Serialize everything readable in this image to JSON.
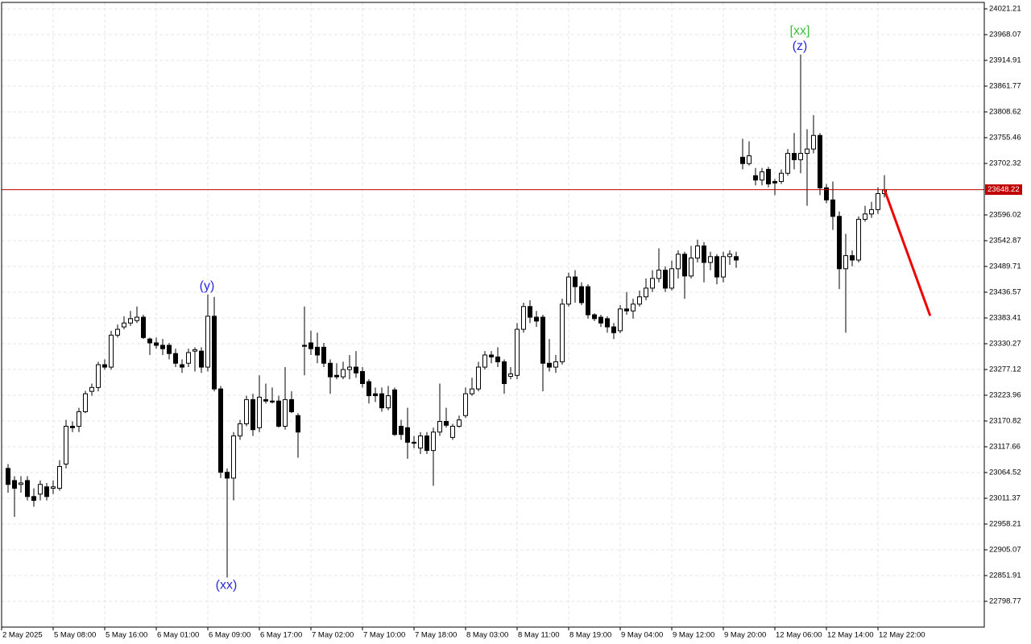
{
  "chart_data": {
    "type": "candlestick",
    "xlim": [
      -1,
      151.5
    ],
    "ylim": [
      22745.6,
      24034.5
    ],
    "grid": true,
    "up_color": "#ffffff",
    "down_color": "#000000",
    "xticks": [
      {
        "value": -1,
        "label": "2 May 2025"
      },
      {
        "value": 7,
        "label": "5 May 08:00"
      },
      {
        "value": 15,
        "label": "5 May 16:00"
      },
      {
        "value": 23,
        "label": "6 May 01:00"
      },
      {
        "value": 31,
        "label": "6 May 09:00"
      },
      {
        "value": 39,
        "label": "6 May 17:00"
      },
      {
        "value": 47,
        "label": "7 May 02:00"
      },
      {
        "value": 55,
        "label": "7 May 10:00"
      },
      {
        "value": 63,
        "label": "7 May 18:00"
      },
      {
        "value": 71,
        "label": "8 May 03:00"
      },
      {
        "value": 79,
        "label": "8 May 11:00"
      },
      {
        "value": 87,
        "label": "8 May 19:00"
      },
      {
        "value": 95,
        "label": "9 May 04:00"
      },
      {
        "value": 103,
        "label": "9 May 12:00"
      },
      {
        "value": 111,
        "label": "9 May 20:00"
      },
      {
        "value": 119,
        "label": "12 May 06:00"
      },
      {
        "value": 127,
        "label": "12 May 14:00"
      },
      {
        "value": 135,
        "label": "12 May 22:00"
      }
    ],
    "yticks": [
      24021.21,
      23968.07,
      23914.91,
      23861.77,
      23808.62,
      23755.46,
      23702.32,
      23596.02,
      23542.87,
      23489.71,
      23436.57,
      23383.41,
      23330.27,
      23277.12,
      23223.96,
      23170.82,
      23117.66,
      23064.52,
      23011.37,
      22958.21,
      22905.07,
      22851.91,
      22798.77
    ],
    "open": [
      23073,
      23048,
      23040,
      23048,
      23015,
      23020,
      23035,
      23032,
      23032,
      23082,
      23160,
      23160,
      23190,
      23232,
      23240,
      23287,
      23282,
      23348,
      23365,
      23373,
      23378,
      23385,
      23340,
      23332,
      23327,
      23327,
      23310,
      23287,
      23290,
      23315,
      23315,
      23282,
      23387,
      23237,
      23065,
      23053,
      23140,
      23165,
      23215,
      23157,
      23215,
      23212,
      23212,
      23160,
      23215,
      23182,
      23327,
      23332,
      23323,
      23323,
      23290,
      23265,
      23262,
      23277,
      23282,
      23273,
      23252,
      23227,
      23227,
      23198,
      23235,
      23160,
      23157,
      23127,
      23115,
      23140,
      23110,
      23148,
      23170,
      23137,
      23160,
      23182,
      23227,
      23237,
      23282,
      23307,
      23303,
      23293,
      23263,
      23265,
      23360,
      23407,
      23385,
      23385,
      23290,
      23282,
      23293,
      23412,
      23468,
      23448,
      23448,
      23390,
      23385,
      23382,
      23365,
      23357,
      23402,
      23398,
      23412,
      23427,
      23445,
      23465,
      23482,
      23445,
      23485,
      23515,
      23470,
      23507,
      23532,
      23498,
      23510,
      23468,
      23510,
      23510,
      23715,
      23702,
      23677,
      23668,
      23690,
      23665,
      23665,
      23682,
      23723,
      23710,
      23723,
      23732,
      23760,
      23652,
      23627,
      23593,
      23485,
      23512,
      23503,
      23587,
      23598,
      23607,
      23640
    ],
    "high": [
      23082,
      23057,
      23057,
      23057,
      23032,
      23048,
      23043,
      23048,
      23090,
      23173,
      23170,
      23198,
      23233,
      23248,
      23293,
      23298,
      23357,
      23370,
      23387,
      23398,
      23407,
      23390,
      23343,
      23343,
      23340,
      23332,
      23320,
      23298,
      23320,
      23323,
      23323,
      23432,
      23427,
      23243,
      23073,
      23148,
      23173,
      23223,
      23227,
      23265,
      23248,
      23240,
      23223,
      23282,
      23232,
      23187,
      23407,
      23357,
      23353,
      23332,
      23298,
      23290,
      23293,
      23307,
      23315,
      23282,
      23257,
      23240,
      23240,
      23243,
      23240,
      23173,
      23198,
      23140,
      23148,
      23148,
      23157,
      23248,
      23198,
      23165,
      23182,
      23240,
      23260,
      23293,
      23315,
      23315,
      23323,
      23298,
      23282,
      23373,
      23415,
      23420,
      23398,
      23390,
      23340,
      23307,
      23423,
      23477,
      23482,
      23457,
      23453,
      23393,
      23390,
      23387,
      23373,
      23410,
      23437,
      23423,
      23440,
      23465,
      23482,
      23527,
      23490,
      23502,
      23523,
      23520,
      23532,
      23545,
      23540,
      23520,
      23515,
      23520,
      23523,
      23520,
      23753,
      23748,
      23693,
      23693,
      23695,
      23670,
      23690,
      23732,
      23765,
      23927,
      23773,
      23802,
      23765,
      23660,
      23665,
      23603,
      23557,
      23523,
      23593,
      23615,
      23623,
      23653,
      23678
    ],
    "low": [
      23023,
      22973,
      23023,
      23007,
      22994,
      23007,
      23007,
      23020,
      23027,
      23073,
      23148,
      23148,
      23187,
      23223,
      23232,
      23277,
      23277,
      23343,
      23360,
      23367,
      23373,
      23340,
      23307,
      23320,
      23307,
      23298,
      23282,
      23270,
      23282,
      23273,
      23270,
      23273,
      23232,
      23053,
      22848,
      23007,
      23132,
      23160,
      23140,
      23148,
      23207,
      23207,
      23157,
      23153,
      23187,
      23095,
      23265,
      23307,
      23290,
      23282,
      23227,
      23257,
      23257,
      23257,
      23260,
      23240,
      23207,
      23210,
      23190,
      23193,
      23140,
      23132,
      23093,
      23115,
      23103,
      23103,
      23037,
      23140,
      23157,
      23132,
      23157,
      23177,
      23223,
      23232,
      23277,
      23290,
      23282,
      23227,
      23257,
      23257,
      23353,
      23373,
      23365,
      23232,
      23273,
      23270,
      23287,
      23407,
      23415,
      23410,
      23382,
      23377,
      23365,
      23353,
      23340,
      23352,
      23390,
      23382,
      23407,
      23420,
      23437,
      23457,
      23437,
      23440,
      23465,
      23423,
      23465,
      23498,
      23457,
      23482,
      23453,
      23457,
      23493,
      23487,
      23690,
      23698,
      23657,
      23657,
      23653,
      23637,
      23660,
      23677,
      23690,
      23682,
      23615,
      23723,
      23637,
      23620,
      23565,
      23443,
      23353,
      23490,
      23498,
      23582,
      23590,
      23598,
      23632
    ],
    "close": [
      23040,
      23032,
      23043,
      23015,
      23007,
      23040,
      23015,
      23035,
      23077,
      23160,
      23157,
      23190,
      23227,
      23240,
      23287,
      23282,
      23348,
      23360,
      23373,
      23382,
      23385,
      23343,
      23332,
      23327,
      23320,
      23310,
      23290,
      23282,
      23312,
      23318,
      23282,
      23387,
      23237,
      23065,
      23053,
      23140,
      23165,
      23215,
      23153,
      23220,
      23212,
      23210,
      23160,
      23215,
      23190,
      23148,
      23325,
      23320,
      23307,
      23290,
      23262,
      23262,
      23277,
      23282,
      23270,
      23248,
      23223,
      23223,
      23198,
      23223,
      23143,
      23143,
      23127,
      23125,
      23140,
      23110,
      23148,
      23170,
      23162,
      23160,
      23173,
      23227,
      23237,
      23282,
      23307,
      23303,
      23293,
      23248,
      23268,
      23360,
      23407,
      23385,
      23377,
      23290,
      23282,
      23293,
      23412,
      23468,
      23448,
      23415,
      23390,
      23382,
      23373,
      23365,
      23353,
      23402,
      23398,
      23412,
      23427,
      23445,
      23465,
      23482,
      23445,
      23485,
      23515,
      23470,
      23507,
      23532,
      23498,
      23510,
      23468,
      23510,
      23515,
      23503,
      23702,
      23718,
      23668,
      23685,
      23660,
      23662,
      23682,
      23723,
      23710,
      23723,
      23732,
      23760,
      23652,
      23627,
      23593,
      23485,
      23512,
      23503,
      23587,
      23598,
      23607,
      23640,
      23648
    ],
    "last_price": 23648.22,
    "last_price_color": "#c00000",
    "forecast": {
      "x": [
        136,
        143.1
      ],
      "values": [
        23648.22,
        23388
      ],
      "color": "#ee0000"
    },
    "annotations": [
      {
        "text": "(y)",
        "index": 31,
        "anchor": "high",
        "color": "#2a2ad8"
      },
      {
        "text": "(xx)",
        "index": 34,
        "anchor": "low",
        "color": "#2a2ad8"
      },
      {
        "text": "(z)",
        "index": 123,
        "anchor": "high",
        "color": "#2a2ad8"
      },
      {
        "text": "[xx]",
        "index": 123,
        "anchor": "high",
        "color": "#3cbf3c"
      }
    ]
  }
}
